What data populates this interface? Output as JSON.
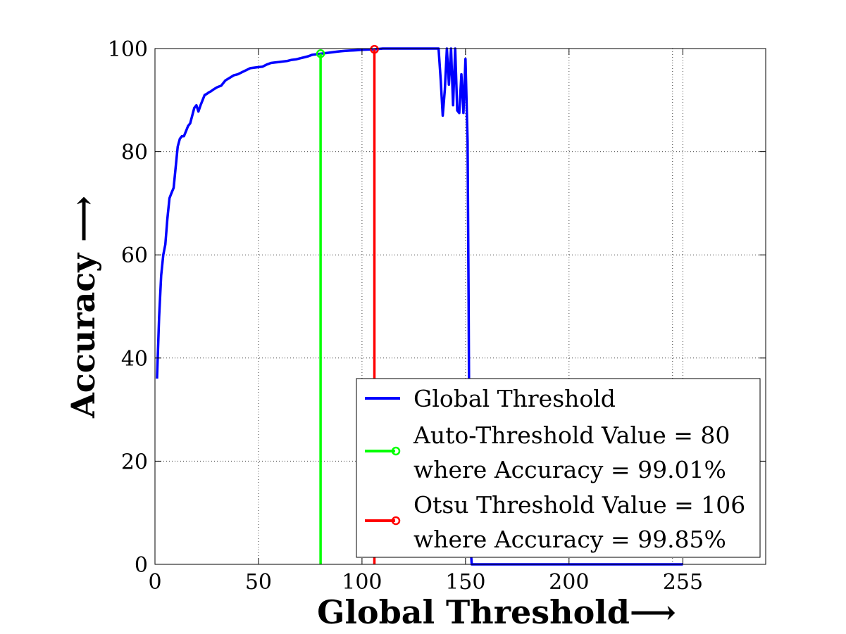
{
  "chart_data": {
    "type": "line",
    "xlabel": "Global Threshold⟶",
    "ylabel": "Accuracy ⟶",
    "xlim": [
      0,
      295
    ],
    "ylim": [
      0,
      100
    ],
    "grid": true,
    "legend_position": "bottom-right",
    "x_ticks": [
      0,
      50,
      100,
      150,
      200,
      255
    ],
    "x_tick_labels": [
      "0",
      "50",
      "100",
      "150",
      "200",
      "255"
    ],
    "y_ticks": [
      0,
      20,
      40,
      60,
      80,
      100
    ],
    "y_tick_labels": [
      "0",
      "20",
      "40",
      "60",
      "80",
      "100"
    ],
    "series": [
      {
        "name": "Global Threshold",
        "color": "#0000ff",
        "x": [
          1,
          2,
          3,
          4,
          5,
          6,
          7,
          8,
          9,
          10,
          11,
          12,
          13,
          14,
          15,
          16,
          17,
          18,
          19,
          20,
          21,
          22,
          23,
          24,
          25,
          26,
          27,
          28,
          30,
          32,
          34,
          36,
          38,
          40,
          42,
          44,
          46,
          48,
          50,
          52,
          54,
          56,
          58,
          60,
          62,
          64,
          66,
          68,
          70,
          72,
          74,
          76,
          78,
          80,
          82,
          84,
          86,
          88,
          90,
          92,
          94,
          96,
          98,
          100,
          102,
          104,
          106,
          110,
          115,
          120,
          125,
          130,
          135,
          137,
          138,
          139,
          140,
          141,
          142,
          143,
          144,
          145,
          146,
          147,
          148,
          149,
          150,
          151,
          151.5,
          152,
          152.5,
          153,
          154,
          160,
          170,
          200,
          255
        ],
        "y": [
          36,
          48,
          56,
          60,
          62,
          67,
          71,
          72,
          73,
          77,
          81,
          82.5,
          83,
          83,
          84,
          85,
          85.5,
          87,
          88.5,
          89,
          87.8,
          89,
          90,
          91,
          91.2,
          91.5,
          91.7,
          92,
          92.5,
          92.8,
          93.8,
          94.3,
          94.8,
          95,
          95.4,
          95.8,
          96.2,
          96.3,
          96.4,
          96.5,
          96.9,
          97.2,
          97.3,
          97.4,
          97.5,
          97.6,
          97.8,
          97.9,
          98.1,
          98.3,
          98.5,
          98.8,
          98.9,
          99.01,
          99.1,
          99.2,
          99.3,
          99.4,
          99.5,
          99.55,
          99.6,
          99.65,
          99.7,
          99.75,
          99.8,
          99.82,
          99.85,
          100,
          100,
          100,
          100,
          100,
          100,
          100,
          94,
          87,
          92,
          100,
          93,
          100,
          89,
          100,
          88,
          87.5,
          95,
          87.5,
          98,
          82,
          50,
          10,
          3,
          0,
          0,
          0,
          0,
          0,
          0
        ]
      },
      {
        "name": "Auto-Threshold Value = 80",
        "name_line2": "where Accuracy = 99.01%",
        "color": "#00ff00",
        "x": [
          80,
          80
        ],
        "y": [
          0,
          99.01
        ],
        "marker": "circle"
      },
      {
        "name": "Otsu Threshold Value = 106",
        "name_line2": "where Accuracy = 99.85%",
        "color": "#ff0000",
        "x": [
          106,
          106
        ],
        "y": [
          0,
          99.85
        ],
        "marker": "circle"
      }
    ]
  }
}
